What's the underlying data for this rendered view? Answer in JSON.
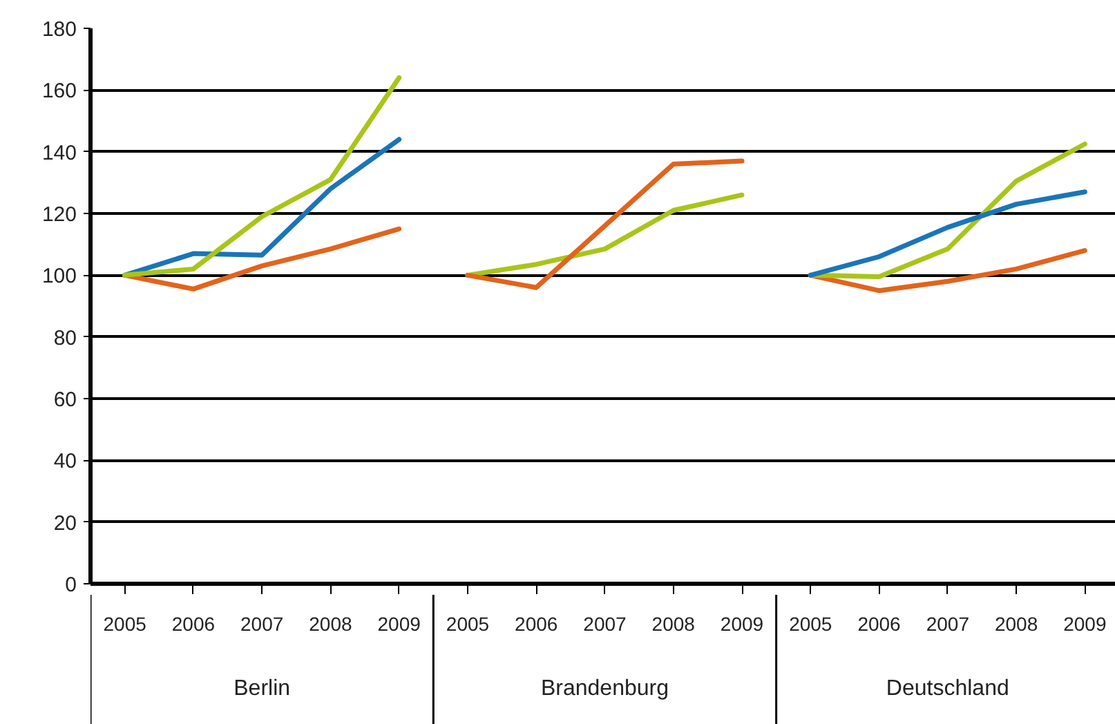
{
  "chart_data": {
    "type": "line",
    "categories": [
      "2005",
      "2006",
      "2007",
      "2008",
      "2009",
      "2005",
      "2006",
      "2007",
      "2008",
      "2009",
      "2005",
      "2006",
      "2007",
      "2008",
      "2009"
    ],
    "annotations": [
      "Berlin",
      "Brandenburg",
      "Deutschland"
    ],
    "ylim": [
      0,
      180
    ],
    "yticks": [
      0,
      20,
      40,
      60,
      80,
      100,
      120,
      140,
      160,
      180
    ],
    "grid": "y",
    "series": [
      {
        "color": "#e2641c",
        "values": [
          100,
          95.5,
          103,
          108.5,
          115,
          null,
          null,
          null,
          null,
          null,
          null,
          null,
          null,
          null,
          null
        ]
      },
      {
        "color": "#1a75b8",
        "values": [
          100,
          107,
          106.5,
          128,
          144,
          null,
          null,
          null,
          null,
          null,
          null,
          null,
          null,
          null,
          null
        ]
      },
      {
        "color": "#a8c51a",
        "values": [
          100,
          102,
          119,
          131,
          164,
          null,
          null,
          null,
          null,
          null,
          null,
          null,
          null,
          null,
          null
        ]
      },
      {
        "color": "#a8c51a",
        "values": [
          null,
          null,
          null,
          null,
          null,
          100,
          103.5,
          108.5,
          121,
          126,
          null,
          null,
          null,
          null,
          null
        ]
      },
      {
        "color": "#e2641c",
        "values": [
          null,
          null,
          null,
          null,
          null,
          100,
          96,
          116,
          136,
          137,
          null,
          null,
          null,
          null,
          null
        ]
      },
      {
        "color": "#e2641c",
        "values": [
          null,
          null,
          null,
          null,
          null,
          null,
          null,
          null,
          null,
          null,
          100,
          95,
          98,
          102,
          108
        ]
      },
      {
        "color": "#a8c51a",
        "values": [
          null,
          null,
          null,
          null,
          null,
          null,
          null,
          null,
          null,
          null,
          100,
          99.5,
          108.5,
          130.5,
          142.5
        ]
      },
      {
        "color": "#1a75b8",
        "values": [
          null,
          null,
          null,
          null,
          null,
          null,
          null,
          null,
          null,
          null,
          100,
          106,
          115.5,
          123,
          127
        ]
      }
    ]
  }
}
